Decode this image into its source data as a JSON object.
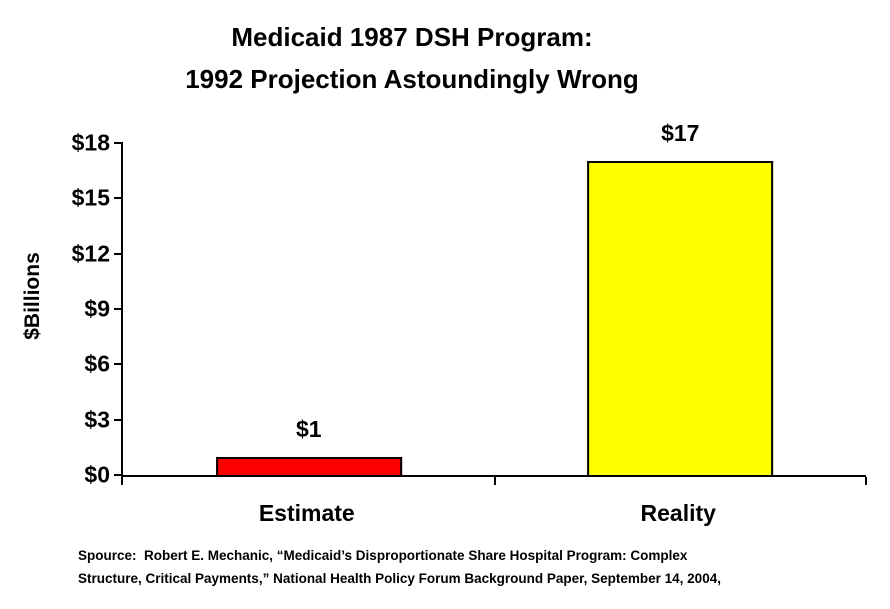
{
  "title": {
    "line1": "Medicaid 1987 DSH Program:",
    "line2": "1992 Projection Astoundingly Wrong"
  },
  "chart_data": {
    "type": "bar",
    "categories": [
      "Estimate",
      "Reality"
    ],
    "values": [
      1,
      17
    ],
    "bar_labels": [
      "$1",
      "$17"
    ],
    "bar_colors": [
      "#ff0000",
      "#ffff00"
    ],
    "title": "Medicaid 1987 DSH Program: 1992 Projection Astoundingly Wrong",
    "xlabel": "",
    "ylabel": "$Billions",
    "ylim": [
      0,
      18
    ],
    "yticks": [
      0,
      3,
      6,
      9,
      12,
      15,
      18
    ],
    "ytick_labels": [
      "$0",
      "$3",
      "$6",
      "$9",
      "$12",
      "$15",
      "$18"
    ],
    "grid": false,
    "legend": false,
    "bar_border_color": "#000000",
    "axis_color": "#000000"
  },
  "source": {
    "line1": "Spource:  Robert E. Mechanic, “Medicaid’s Disproportionate Share Hospital Program: Complex",
    "line2": "Structure, Critical Payments,” National Health Policy Forum Background Paper, September 14, 2004,"
  }
}
